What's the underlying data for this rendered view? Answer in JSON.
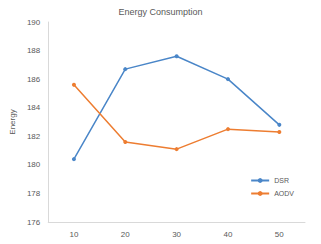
{
  "chart_data": {
    "type": "line",
    "title": "Energy Consumption",
    "y_label": "Energy",
    "categories": [
      "10",
      "20",
      "30",
      "40",
      "50"
    ],
    "series": [
      {
        "name": "DSR",
        "color": "#4a86c8",
        "marker": "circle",
        "values": [
          180.4,
          186.7,
          187.6,
          186.0,
          182.8
        ]
      },
      {
        "name": "AODV",
        "color": "#ed7d31",
        "marker": "circle",
        "values": [
          185.6,
          181.6,
          181.1,
          182.5,
          182.3
        ]
      }
    ],
    "ylim": [
      176,
      190
    ],
    "yticks": [
      176,
      178,
      180,
      182,
      184,
      186,
      188,
      190
    ],
    "grid": false,
    "legend": "lower right"
  }
}
